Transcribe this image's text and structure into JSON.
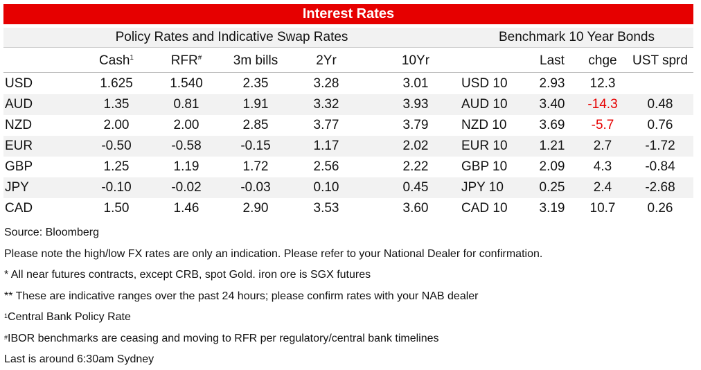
{
  "title": "Interest Rates",
  "groups": {
    "policy": "Policy Rates and Indicative Swap Rates",
    "bench": "Benchmark 10 Year Bonds"
  },
  "headers": {
    "cash": "Cash",
    "cash_sup": "1",
    "rfr": "RFR",
    "rfr_sup": "#",
    "bills": "3m bills",
    "y2": "2Yr",
    "y10": "10Yr",
    "last": "Last",
    "chge": "chge",
    "ust": "UST sprd"
  },
  "rows": [
    {
      "ccy": "USD",
      "cash": "1.625",
      "rfr": "1.540",
      "bills": "2.35",
      "y2": "3.28",
      "y10": "3.01",
      "bond": "USD 10",
      "last": "2.93",
      "chge": "12.3",
      "chge_neg": false,
      "ust": ""
    },
    {
      "ccy": "AUD",
      "cash": "1.35",
      "rfr": "0.81",
      "bills": "1.91",
      "y2": "3.32",
      "y10": "3.93",
      "bond": "AUD 10",
      "last": "3.40",
      "chge": "-14.3",
      "chge_neg": true,
      "ust": "0.48"
    },
    {
      "ccy": "NZD",
      "cash": "2.00",
      "rfr": "2.00",
      "bills": "2.85",
      "y2": "3.77",
      "y10": "3.79",
      "bond": "NZD 10",
      "last": "3.69",
      "chge": "-5.7",
      "chge_neg": true,
      "ust": "0.76"
    },
    {
      "ccy": "EUR",
      "cash": "-0.50",
      "rfr": "-0.58",
      "bills": "-0.15",
      "y2": "1.17",
      "y10": "2.02",
      "bond": "EUR 10",
      "last": "1.21",
      "chge": "2.7",
      "chge_neg": false,
      "ust": "-1.72"
    },
    {
      "ccy": "GBP",
      "cash": "1.25",
      "rfr": "1.19",
      "bills": "1.72",
      "y2": "2.56",
      "y10": "2.22",
      "bond": "GBP 10",
      "last": "2.09",
      "chge": "4.3",
      "chge_neg": false,
      "ust": "-0.84"
    },
    {
      "ccy": "JPY",
      "cash": "-0.10",
      "rfr": "-0.02",
      "bills": "-0.03",
      "y2": "0.10",
      "y10": "0.45",
      "bond": "JPY 10",
      "last": "0.25",
      "chge": "2.4",
      "chge_neg": false,
      "ust": "-2.68"
    },
    {
      "ccy": "CAD",
      "cash": "1.50",
      "rfr": "1.46",
      "bills": "2.90",
      "y2": "3.53",
      "y10": "3.60",
      "bond": "CAD 10",
      "last": "3.19",
      "chge": "10.7",
      "chge_neg": false,
      "ust": "0.26"
    }
  ],
  "footnotes": {
    "source": "Source: Bloomberg",
    "fx_note": "Please note the high/low FX rates are only an indication. Please refer to your National Dealer for confirmation.",
    "futures_note": "* All near futures contracts, except CRB, spot Gold.  iron ore is SGX futures",
    "ranges_note": "** These are indicative ranges over the past 24 hours; please confirm rates with your NAB dealer",
    "cb_sup": "1",
    "cb_note": "Central Bank Policy Rate",
    "ibor_sup": "#",
    "ibor_note": "IBOR benchmarks are ceasing and moving to RFR per regulatory/central bank timelines",
    "last_note": "Last is around 6:30am Sydney"
  },
  "colors": {
    "accent": "#e60000",
    "shade": "#f2f2f2"
  }
}
